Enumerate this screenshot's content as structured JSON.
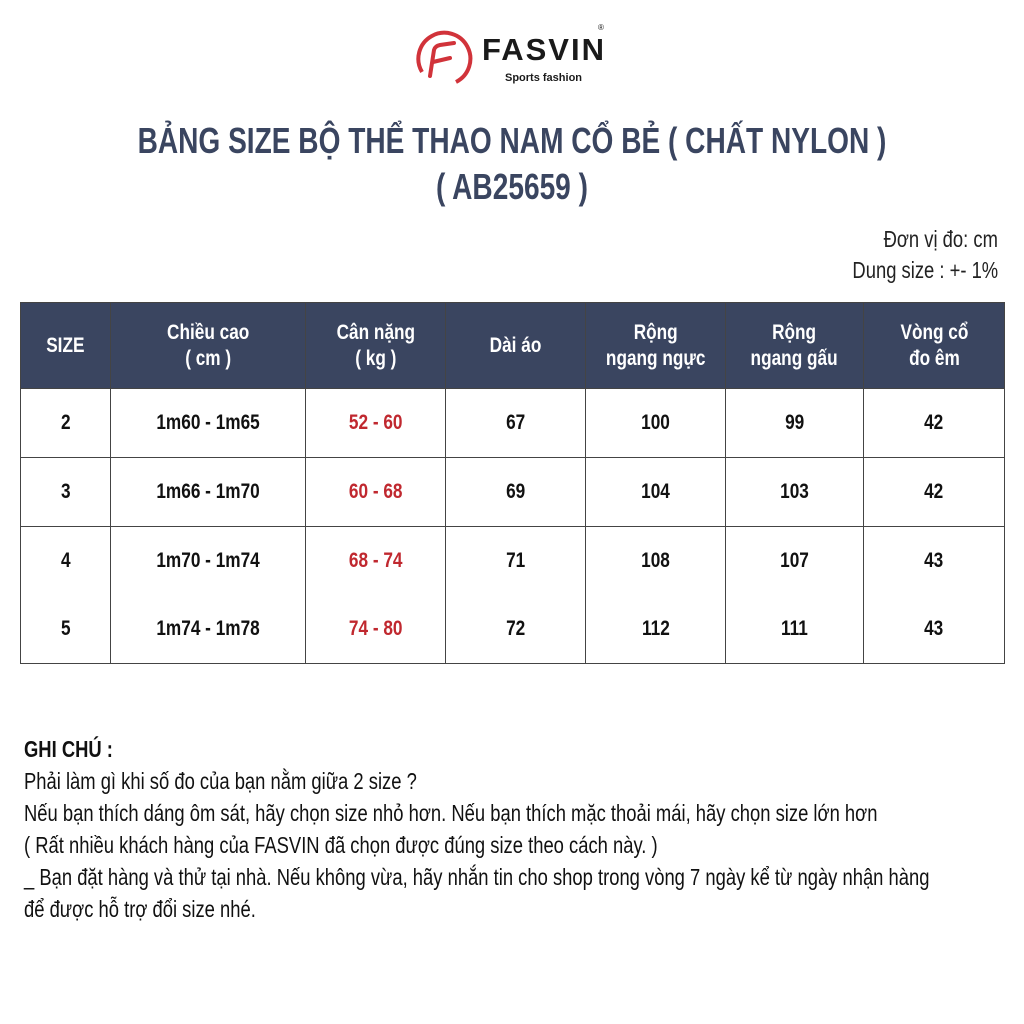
{
  "logo": {
    "brand": "FASVIN",
    "tagline": "Sports fashion",
    "registered": "®",
    "color": "#d1333a"
  },
  "title": {
    "line1": "BẢNG SIZE BỘ THỂ THAO NAM CỔ BẺ ( CHẤT NYLON )",
    "line2": "( AB25659 )"
  },
  "units": {
    "unit": "Đơn vị đo: cm",
    "tolerance": "Dung size : +- 1%"
  },
  "colors": {
    "header_bg": "#3a4560",
    "weight_text": "#c0282f"
  },
  "table": {
    "headers": [
      [
        "SIZE"
      ],
      [
        "Chiều cao",
        "( cm )"
      ],
      [
        "Cân nặng",
        "( kg )"
      ],
      [
        "Dài áo"
      ],
      [
        "Rộng",
        "ngang ngực"
      ],
      [
        "Rộng",
        "ngang gấu"
      ],
      [
        "Vòng cổ",
        "đo êm"
      ]
    ],
    "rows": [
      [
        "2",
        "1m60 - 1m65",
        "52 - 60",
        "67",
        "100",
        "99",
        "42"
      ],
      [
        "3",
        "1m66 - 1m70",
        "60 - 68",
        "69",
        "104",
        "103",
        "42"
      ],
      [
        "4",
        "1m70 - 1m74",
        "68 - 74",
        "71",
        "108",
        "107",
        "43"
      ],
      [
        "5",
        "1m74 - 1m78",
        "74 - 80",
        "72",
        "112",
        "111",
        "43"
      ]
    ]
  },
  "notes": {
    "heading": "GHI CHÚ :",
    "lines": [
      "Phải làm gì khi số đo của bạn nằm giữa 2 size ?",
      "Nếu bạn thích dáng ôm sát, hãy chọn size nhỏ hơn. Nếu bạn thích mặc thoải mái, hãy chọn size lớn hơn",
      "( Rất nhiều khách hàng của FASVIN đã chọn được đúng size theo cách này. )",
      "_ Bạn đặt hàng và thử tại nhà. Nếu không vừa, hãy nhắn tin cho shop trong vòng 7 ngày kể từ ngày nhận hàng",
      "để được hỗ trợ đổi size nhé."
    ]
  }
}
